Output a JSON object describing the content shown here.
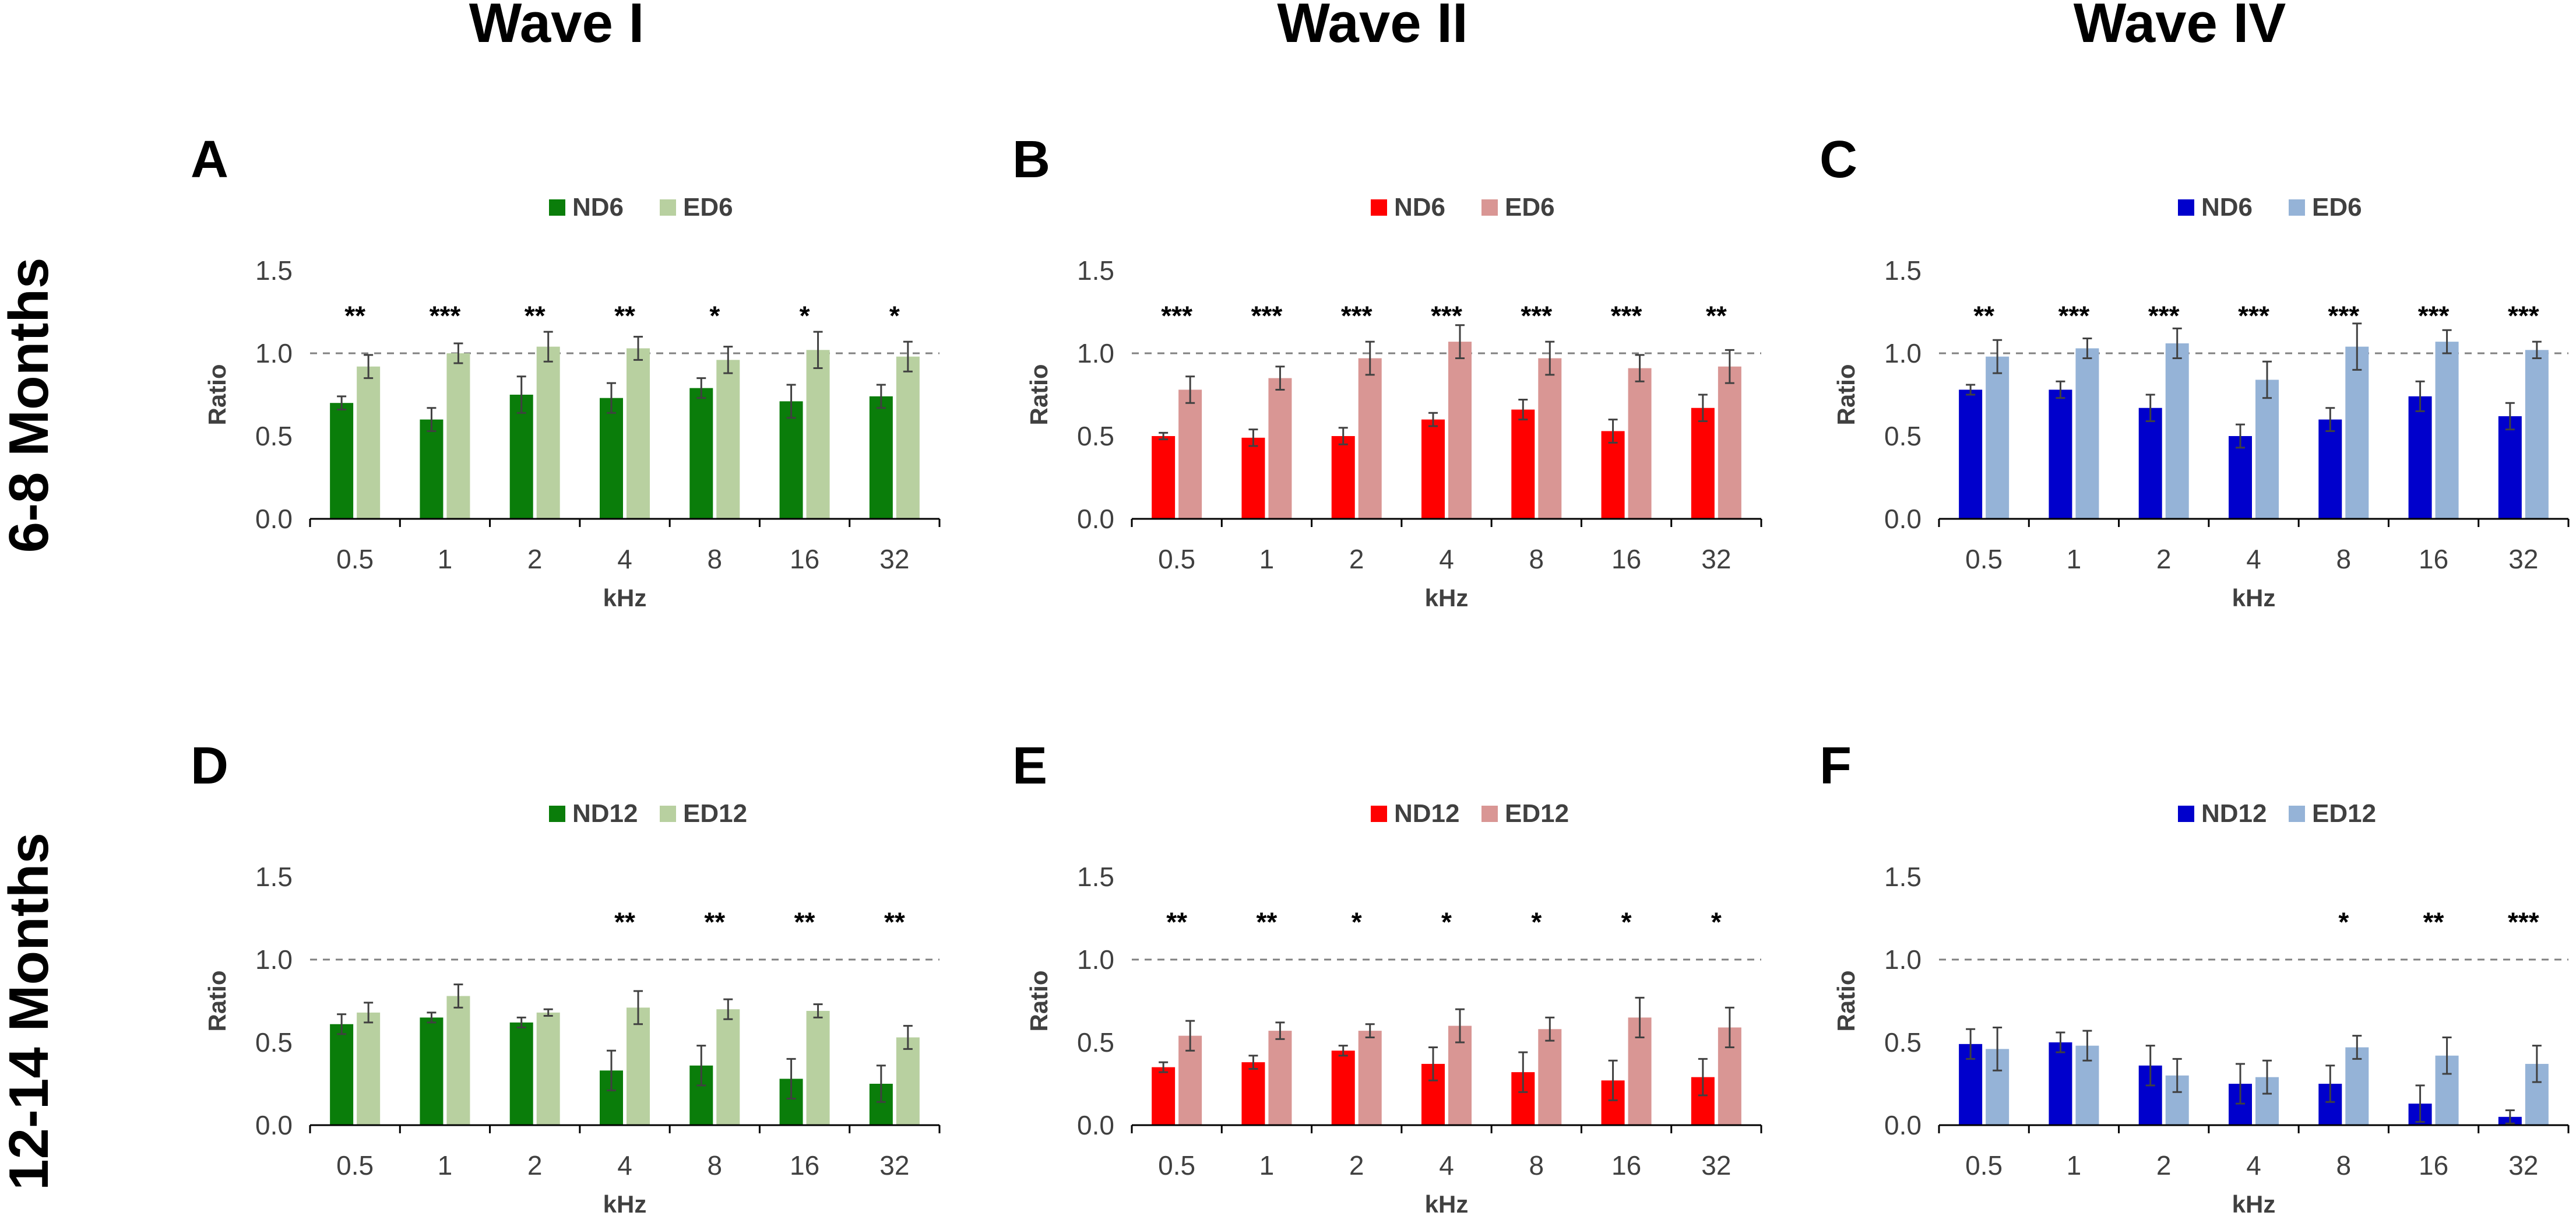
{
  "figure": {
    "column_titles": [
      "Wave I",
      "Wave II",
      "Wave IV"
    ],
    "row_titles": [
      "6-8 Months",
      "12-14 Months"
    ]
  },
  "chart_data": [
    {
      "panel": "A",
      "type": "bar",
      "column": 0,
      "row": 0,
      "colors": [
        "#0a7d0a",
        "#b8d0a0"
      ],
      "categories": [
        "0.5",
        "1",
        "2",
        "4",
        "8",
        "16",
        "32"
      ],
      "series": [
        {
          "name": "ND6",
          "values": [
            0.7,
            0.6,
            0.75,
            0.73,
            0.79,
            0.71,
            0.74
          ],
          "errors": [
            0.04,
            0.07,
            0.11,
            0.09,
            0.06,
            0.1,
            0.07
          ]
        },
        {
          "name": "ED6",
          "values": [
            0.92,
            1.0,
            1.04,
            1.03,
            0.96,
            1.02,
            0.98
          ],
          "errors": [
            0.07,
            0.06,
            0.09,
            0.07,
            0.08,
            0.11,
            0.09
          ]
        }
      ],
      "significance": [
        "**",
        "***",
        "**",
        "**",
        "*",
        "*",
        "*"
      ],
      "reference_line": 1.0,
      "xlabel": "kHz",
      "ylabel": "Ratio",
      "ylim": [
        0,
        1.5
      ],
      "yticks": [
        "0.0",
        "0.5",
        "1.0",
        "1.5"
      ]
    },
    {
      "panel": "B",
      "type": "bar",
      "column": 1,
      "row": 0,
      "colors": [
        "#ff0000",
        "#d99694"
      ],
      "categories": [
        "0.5",
        "1",
        "2",
        "4",
        "8",
        "16",
        "32"
      ],
      "series": [
        {
          "name": "ND6",
          "values": [
            0.5,
            0.49,
            0.5,
            0.6,
            0.66,
            0.53,
            0.67
          ],
          "errors": [
            0.02,
            0.05,
            0.05,
            0.04,
            0.06,
            0.07,
            0.08
          ]
        },
        {
          "name": "ED6",
          "values": [
            0.78,
            0.85,
            0.97,
            1.07,
            0.97,
            0.91,
            0.92
          ],
          "errors": [
            0.08,
            0.07,
            0.1,
            0.1,
            0.1,
            0.08,
            0.1
          ]
        }
      ],
      "significance": [
        "***",
        "***",
        "***",
        "***",
        "***",
        "***",
        "**"
      ],
      "reference_line": 1.0,
      "xlabel": "kHz",
      "ylabel": "Ratio",
      "ylim": [
        0,
        1.5
      ],
      "yticks": [
        "0.0",
        "0.5",
        "1.0",
        "1.5"
      ]
    },
    {
      "panel": "C",
      "type": "bar",
      "column": 2,
      "row": 0,
      "colors": [
        "#0000cc",
        "#95b3d7"
      ],
      "categories": [
        "0.5",
        "1",
        "2",
        "4",
        "8",
        "16",
        "32"
      ],
      "series": [
        {
          "name": "ND6",
          "values": [
            0.78,
            0.78,
            0.67,
            0.5,
            0.6,
            0.74,
            0.62
          ],
          "errors": [
            0.03,
            0.05,
            0.08,
            0.07,
            0.07,
            0.09,
            0.08
          ]
        },
        {
          "name": "ED6",
          "values": [
            0.98,
            1.03,
            1.06,
            0.84,
            1.04,
            1.07,
            1.02
          ],
          "errors": [
            0.1,
            0.06,
            0.09,
            0.11,
            0.14,
            0.07,
            0.05
          ]
        }
      ],
      "significance": [
        "**",
        "***",
        "***",
        "***",
        "***",
        "***",
        "***"
      ],
      "reference_line": 1.0,
      "xlabel": "kHz",
      "ylabel": "Ratio",
      "ylim": [
        0,
        1.5
      ],
      "yticks": [
        "0.0",
        "0.5",
        "1.0",
        "1.5"
      ]
    },
    {
      "panel": "D",
      "type": "bar",
      "column": 0,
      "row": 1,
      "colors": [
        "#0a7d0a",
        "#b8d0a0"
      ],
      "categories": [
        "0.5",
        "1",
        "2",
        "4",
        "8",
        "16",
        "32"
      ],
      "series": [
        {
          "name": "ND12",
          "values": [
            0.61,
            0.65,
            0.62,
            0.33,
            0.36,
            0.28,
            0.25
          ],
          "errors": [
            0.06,
            0.03,
            0.03,
            0.12,
            0.12,
            0.12,
            0.11
          ]
        },
        {
          "name": "ED12",
          "values": [
            0.68,
            0.78,
            0.68,
            0.71,
            0.7,
            0.69,
            0.53
          ],
          "errors": [
            0.06,
            0.07,
            0.02,
            0.1,
            0.06,
            0.04,
            0.07
          ]
        }
      ],
      "significance": [
        "",
        "",
        "",
        "**",
        "**",
        "**",
        "**"
      ],
      "reference_line": 1.0,
      "xlabel": "kHz",
      "ylabel": "Ratio",
      "ylim": [
        0,
        1.5
      ],
      "yticks": [
        "0.0",
        "0.5",
        "1.0",
        "1.5"
      ]
    },
    {
      "panel": "E",
      "type": "bar",
      "column": 1,
      "row": 1,
      "colors": [
        "#ff0000",
        "#d99694"
      ],
      "categories": [
        "0.5",
        "1",
        "2",
        "4",
        "8",
        "16",
        "32"
      ],
      "series": [
        {
          "name": "ND12",
          "values": [
            0.35,
            0.38,
            0.45,
            0.37,
            0.32,
            0.27,
            0.29
          ],
          "errors": [
            0.03,
            0.04,
            0.03,
            0.1,
            0.12,
            0.12,
            0.11
          ]
        },
        {
          "name": "ED12",
          "values": [
            0.54,
            0.57,
            0.57,
            0.6,
            0.58,
            0.65,
            0.59
          ],
          "errors": [
            0.09,
            0.05,
            0.04,
            0.1,
            0.07,
            0.12,
            0.12
          ]
        }
      ],
      "significance": [
        "**",
        "**",
        "*",
        "*",
        "*",
        "*",
        "*"
      ],
      "reference_line": 1.0,
      "xlabel": "kHz",
      "ylabel": "Ratio",
      "ylim": [
        0,
        1.5
      ],
      "yticks": [
        "0.0",
        "0.5",
        "1.0",
        "1.5"
      ]
    },
    {
      "panel": "F",
      "type": "bar",
      "column": 2,
      "row": 1,
      "colors": [
        "#0000cc",
        "#95b3d7"
      ],
      "categories": [
        "0.5",
        "1",
        "2",
        "4",
        "8",
        "16",
        "32"
      ],
      "series": [
        {
          "name": "ND12",
          "values": [
            0.49,
            0.5,
            0.36,
            0.25,
            0.25,
            0.13,
            0.05
          ],
          "errors": [
            0.09,
            0.06,
            0.12,
            0.12,
            0.11,
            0.11,
            0.04
          ]
        },
        {
          "name": "ED12",
          "values": [
            0.46,
            0.48,
            0.3,
            0.29,
            0.47,
            0.42,
            0.37
          ],
          "errors": [
            0.13,
            0.09,
            0.1,
            0.1,
            0.07,
            0.11,
            0.11
          ]
        }
      ],
      "significance": [
        "",
        "",
        "",
        "",
        "*",
        "**",
        "***"
      ],
      "reference_line": 1.0,
      "xlabel": "kHz",
      "ylabel": "Ratio",
      "ylim": [
        0,
        1.5
      ],
      "yticks": [
        "0.0",
        "0.5",
        "1.0",
        "1.5"
      ]
    }
  ]
}
